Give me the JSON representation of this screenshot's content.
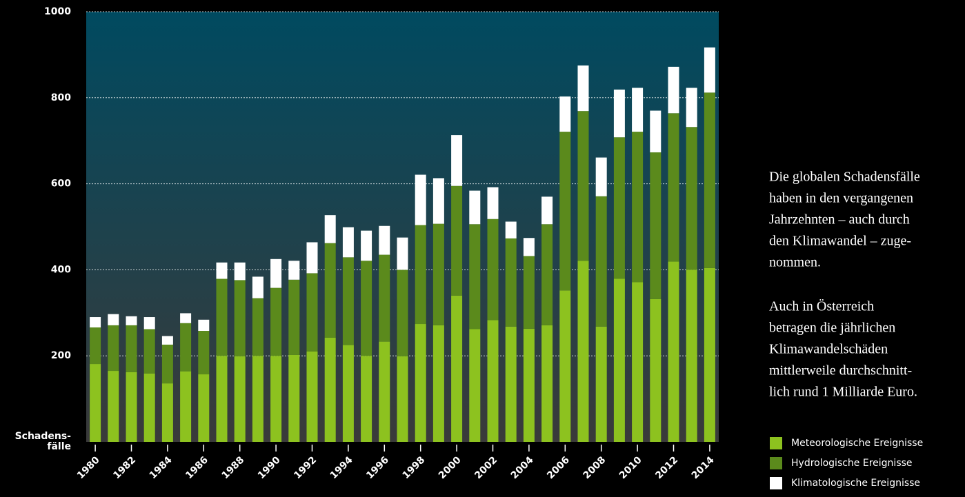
{
  "chart_data": {
    "type": "stacked_bar",
    "ylabel": [
      "Schadens-",
      "fälle"
    ],
    "categories": [
      "1980",
      null,
      "1982",
      null,
      "1984",
      null,
      "1986",
      null,
      "1988",
      null,
      "1990",
      null,
      "1992",
      null,
      "1994",
      null,
      "1996",
      null,
      "1998",
      null,
      "2000",
      null,
      "2002",
      null,
      "2004",
      null,
      "2006",
      null,
      "2008",
      null,
      "2010",
      null,
      "2012",
      null,
      "2014"
    ],
    "series": [
      {
        "name": "Meteorologische Ereignisse",
        "color": "#8dc21f",
        "values": [
          181,
          165,
          162,
          159,
          136,
          164,
          157,
          200,
          199,
          200,
          200,
          202,
          210,
          242,
          225,
          200,
          233,
          199,
          274,
          271,
          340,
          262,
          283,
          268,
          263,
          271,
          352,
          421,
          268,
          379,
          371,
          332,
          419,
          400,
          404
        ]
      },
      {
        "name": "Hydrologische Ereignisse",
        "color": "#5b8a1c",
        "values": [
          85,
          106,
          109,
          103,
          90,
          112,
          101,
          179,
          177,
          134,
          158,
          175,
          182,
          220,
          204,
          221,
          202,
          201,
          230,
          236,
          255,
          244,
          235,
          205,
          169,
          235,
          369,
          348,
          303,
          329,
          350,
          341,
          345,
          332,
          408
        ]
      },
      {
        "name": "Klimatologische Ereignisse",
        "color": "#ffffff",
        "values": [
          24,
          26,
          21,
          28,
          20,
          23,
          26,
          38,
          41,
          50,
          67,
          44,
          72,
          65,
          70,
          70,
          67,
          75,
          117,
          106,
          118,
          78,
          74,
          39,
          42,
          64,
          82,
          106,
          90,
          111,
          102,
          97,
          108,
          91,
          105
        ]
      }
    ],
    "ylim": [
      0,
      1000
    ],
    "yticks": [
      200,
      400,
      600,
      800,
      1000
    ],
    "grid": true,
    "annotations": [
      [
        "Die globalen Schadensfälle",
        "haben in den vergangenen",
        "Jahrzehnten – auch durch",
        "den Klimawandel – zuge-",
        "nommen."
      ],
      [
        "Auch in Österreich",
        "betragen die jährlichen",
        "Klimawandelschäden",
        "mittlerweile durchschnitt-",
        "lich rund 1 Milliarde Euro."
      ]
    ]
  }
}
